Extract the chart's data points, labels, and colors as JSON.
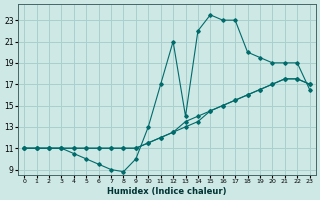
{
  "xlabel": "Humidex (Indice chaleur)",
  "ylabel": "",
  "bg_color": "#cde8e5",
  "grid_color": "#a8d0cc",
  "line_color": "#006b6b",
  "marker_color": "#006b6b",
  "xlim": [
    -0.5,
    23.5
  ],
  "ylim": [
    8.5,
    24.5
  ],
  "xticks": [
    0,
    1,
    2,
    3,
    4,
    5,
    6,
    7,
    8,
    9,
    10,
    11,
    12,
    13,
    14,
    15,
    16,
    17,
    18,
    19,
    20,
    21,
    22,
    23
  ],
  "yticks": [
    9,
    11,
    13,
    15,
    17,
    19,
    21,
    23
  ],
  "line1_x": [
    0,
    1,
    2,
    3,
    4,
    5,
    6,
    7,
    8,
    9,
    10,
    11,
    12,
    13,
    14,
    15,
    16,
    17,
    18,
    19,
    20,
    21,
    22,
    23
  ],
  "line1_y": [
    11,
    11,
    11,
    11,
    10.5,
    10,
    9.5,
    9,
    8.8,
    10,
    13,
    17,
    21,
    14,
    22,
    23.5,
    23,
    23,
    20,
    19.5,
    19,
    19,
    19,
    16.5
  ],
  "line2_x": [
    0,
    1,
    2,
    3,
    4,
    5,
    6,
    7,
    8,
    9,
    10,
    11,
    12,
    13,
    14,
    15,
    16,
    17,
    18,
    19,
    20,
    21,
    22,
    23
  ],
  "line2_y": [
    11,
    11,
    11,
    11,
    11,
    11,
    11,
    11,
    11,
    11,
    11.5,
    12,
    12.5,
    13,
    13.5,
    14.5,
    15,
    15.5,
    16,
    16.5,
    17,
    17.5,
    17.5,
    17
  ],
  "line3_x": [
    0,
    1,
    2,
    3,
    4,
    5,
    6,
    7,
    8,
    9,
    10,
    11,
    12,
    13,
    14,
    15,
    16,
    17,
    18,
    19,
    20,
    21,
    22,
    23
  ],
  "line3_y": [
    11,
    11,
    11,
    11,
    11,
    11,
    11,
    11,
    11,
    11,
    11.5,
    12,
    12.5,
    13.5,
    14,
    14.5,
    15,
    15.5,
    16,
    16.5,
    17,
    17.5,
    17.5,
    17
  ]
}
